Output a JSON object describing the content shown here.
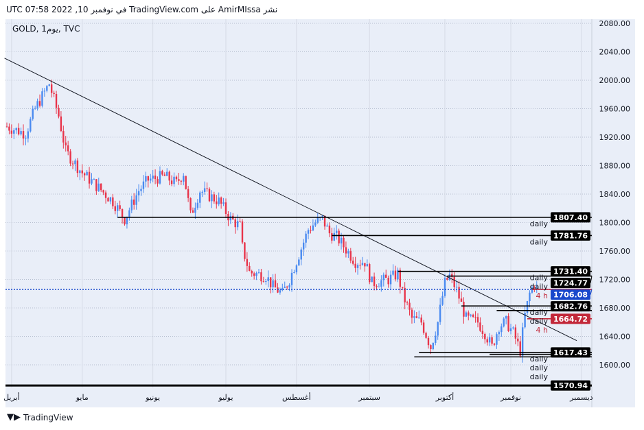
{
  "header": "UTC في نوفمبر 10, 2022 07:58 TradingView.com على AmirMIssa نشر",
  "symbol_label": "GOLD, 1يوم, TVC",
  "footer": "TradingView",
  "chart_data": {
    "type": "candlestick",
    "title": "GOLD, 1D, TVC",
    "ylim": [
      1570,
      2090
    ],
    "y_ticks": [
      2080,
      2040,
      2000,
      1960,
      1920,
      1880,
      1840,
      1800,
      1760,
      1720,
      1680,
      1640,
      1600
    ],
    "y_tick_labels": [
      "2080.00",
      "2040.00",
      "2000.00",
      "1960.00",
      "1920.00",
      "1880.00",
      "1840.00",
      "1800.00",
      "1760.00",
      "1720.00",
      "1680.00",
      "1640.00",
      "1600.00"
    ],
    "x_ticks": [
      {
        "day": 2,
        "label": "أبريل"
      },
      {
        "day": 32,
        "label": "مايو"
      },
      {
        "day": 62,
        "label": "يونيو"
      },
      {
        "day": 93,
        "label": "يوليو"
      },
      {
        "day": 123,
        "label": "أغسطس"
      },
      {
        "day": 154,
        "label": "سبتمبر"
      },
      {
        "day": 186,
        "label": "أكتوبر"
      },
      {
        "day": 214,
        "label": "نوفمبر"
      },
      {
        "day": 244,
        "label": "ديسمبر"
      }
    ],
    "xlim": [
      0,
      248
    ],
    "price_path": [
      [
        0,
        1935
      ],
      [
        8,
        1925
      ],
      [
        12,
        1960
      ],
      [
        18,
        1995
      ],
      [
        22,
        1950
      ],
      [
        25,
        1900
      ],
      [
        32,
        1870
      ],
      [
        37,
        1855
      ],
      [
        45,
        1830
      ],
      [
        50,
        1805
      ],
      [
        56,
        1845
      ],
      [
        60,
        1860
      ],
      [
        67,
        1865
      ],
      [
        72,
        1855
      ],
      [
        75,
        1870
      ],
      [
        78,
        1810
      ],
      [
        82,
        1845
      ],
      [
        90,
        1830
      ],
      [
        95,
        1805
      ],
      [
        99,
        1795
      ],
      [
        100,
        1765
      ],
      [
        103,
        1730
      ],
      [
        110,
        1725
      ],
      [
        113,
        1710
      ],
      [
        117,
        1700
      ],
      [
        120,
        1720
      ],
      [
        124,
        1755
      ],
      [
        128,
        1790
      ],
      [
        131,
        1800
      ],
      [
        134,
        1805
      ],
      [
        137,
        1785
      ],
      [
        140,
        1780
      ],
      [
        148,
        1745
      ],
      [
        152,
        1745
      ],
      [
        155,
        1715
      ],
      [
        162,
        1720
      ],
      [
        166,
        1728
      ],
      [
        168,
        1700
      ],
      [
        172,
        1665
      ],
      [
        176,
        1660
      ],
      [
        180,
        1625
      ],
      [
        183,
        1660
      ],
      [
        186,
        1715
      ],
      [
        188,
        1725
      ],
      [
        191,
        1705
      ],
      [
        195,
        1665
      ],
      [
        200,
        1660
      ],
      [
        203,
        1645
      ],
      [
        206,
        1625
      ],
      [
        209,
        1655
      ],
      [
        212,
        1660
      ],
      [
        215,
        1645
      ],
      [
        218,
        1620
      ],
      [
        220,
        1670
      ],
      [
        222,
        1700
      ],
      [
        224,
        1715
      ],
      [
        225,
        1706
      ]
    ],
    "last_price": {
      "value": 1706.08,
      "label": "1706.08",
      "color": "#1848cc"
    },
    "trendline": [
      [
        -1,
        2031
      ],
      [
        242,
        1634
      ]
    ],
    "levels": [
      {
        "price": 1807.4,
        "label": "1807.40",
        "from_day": 47,
        "note": "daily",
        "color": "#000000"
      },
      {
        "price": 1781.76,
        "label": "1781.76",
        "from_day": 138,
        "note": "daily",
        "color": "#000000"
      },
      {
        "price": 1731.4,
        "label": "1731.40",
        "from_day": 166,
        "note": "daily",
        "color": "#000000"
      },
      {
        "price": 1724.77,
        "label": "1724.77",
        "from_day": 187,
        "note": "daily",
        "color": "#000000"
      },
      {
        "price": 1706.08,
        "label": "",
        "from_day": 223,
        "note": "4 h",
        "color": "#c2283a"
      },
      {
        "price": 1682.76,
        "label": "1682.76",
        "from_day": 193,
        "note": "daily",
        "color": "#000000"
      },
      {
        "price": 1676.3,
        "label": "",
        "from_day": 208,
        "note": "daily",
        "color": "#000000"
      },
      {
        "price": 1664.72,
        "label": "1664.72",
        "from_day": 221,
        "note": "4 h",
        "color": "#c2283a"
      },
      {
        "price": 1617.43,
        "label": "1617.43",
        "from_day": 175,
        "note": "daily",
        "color": "#000000"
      },
      {
        "price": 1614.8,
        "label": "",
        "from_day": 205,
        "note": "daily",
        "color": "#000000"
      },
      {
        "price": 1611.2,
        "label": "",
        "from_day": 173,
        "note": "daily",
        "color": "#000000"
      },
      {
        "price": 1570.94,
        "label": "1570.94",
        "from_day": -3,
        "note": "",
        "color": "#000000"
      }
    ],
    "colors": {
      "up": "#4a8af0",
      "down": "#e8344a",
      "bg": "#e9eef8"
    }
  }
}
